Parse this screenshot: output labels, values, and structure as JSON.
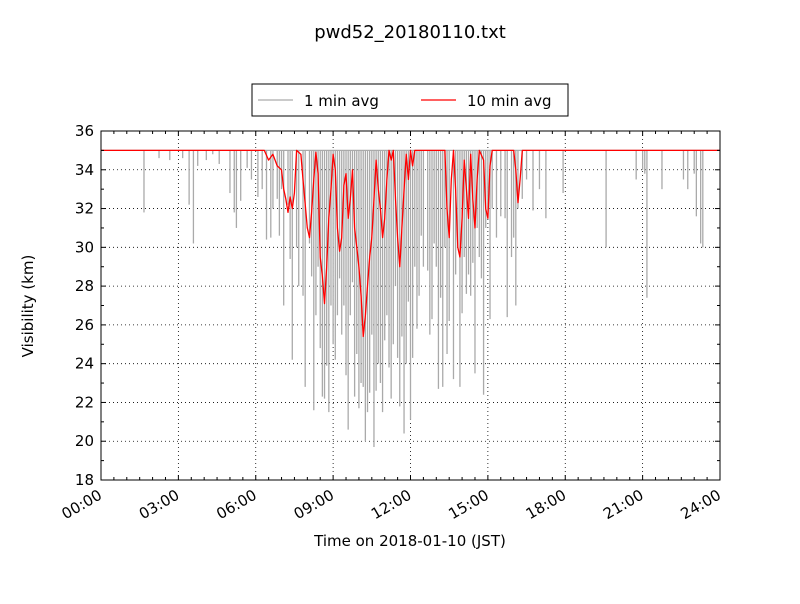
{
  "chart_data": {
    "type": "line",
    "title": "pwd52_20180110.txt",
    "xlabel": "Time on 2018-01-10 (JST)",
    "ylabel": "Visibility (km)",
    "xlim": [
      "00:00",
      "24:00"
    ],
    "ylim": [
      18,
      36
    ],
    "x_ticks": [
      "00:00",
      "03:00",
      "06:00",
      "09:00",
      "12:00",
      "15:00",
      "18:00",
      "21:00",
      "24:00"
    ],
    "y_ticks": [
      "18",
      "20",
      "22",
      "24",
      "26",
      "28",
      "30",
      "32",
      "34",
      "36"
    ],
    "grid": true,
    "legend": {
      "placement": "top-center",
      "entries": [
        "1 min avg",
        "10 min avg"
      ]
    },
    "series": [
      {
        "name": "1 min avg",
        "color": "#aaaaaa",
        "baseline": 35.0,
        "dips": [
          [
            "01:40",
            31.8
          ],
          [
            "02:15",
            34.6
          ],
          [
            "02:40",
            34.5
          ],
          [
            "03:10",
            34.6
          ],
          [
            "03:25",
            32.2
          ],
          [
            "03:35",
            30.2
          ],
          [
            "03:45",
            34.2
          ],
          [
            "04:05",
            34.5
          ],
          [
            "04:20",
            34.8
          ],
          [
            "04:35",
            34.3
          ],
          [
            "05:00",
            32.8
          ],
          [
            "05:10",
            31.8
          ],
          [
            "05:15",
            31.0
          ],
          [
            "05:25",
            32.4
          ],
          [
            "05:40",
            34.1
          ],
          [
            "05:50",
            33.5
          ],
          [
            "06:05",
            32.6
          ],
          [
            "06:15",
            33.0
          ],
          [
            "06:25",
            30.4
          ],
          [
            "06:35",
            30.5
          ],
          [
            "06:40",
            32.0
          ],
          [
            "06:50",
            32.5
          ],
          [
            "06:55",
            30.6
          ],
          [
            "07:00",
            33.0
          ],
          [
            "07:05",
            27.0
          ],
          [
            "07:15",
            32.2
          ],
          [
            "07:20",
            29.4
          ],
          [
            "07:25",
            24.2
          ],
          [
            "07:35",
            30.0
          ],
          [
            "07:40",
            28.0
          ],
          [
            "07:50",
            27.5
          ],
          [
            "07:55",
            22.8
          ],
          [
            "08:05",
            30.2
          ],
          [
            "08:10",
            28.5
          ],
          [
            "08:15",
            21.6
          ],
          [
            "08:20",
            26.5
          ],
          [
            "08:25",
            29.0
          ],
          [
            "08:30",
            24.8
          ],
          [
            "08:35",
            22.3
          ],
          [
            "08:40",
            22.2
          ],
          [
            "08:45",
            23.9
          ],
          [
            "08:50",
            21.5
          ],
          [
            "08:55",
            27.0
          ],
          [
            "09:00",
            25.0
          ],
          [
            "09:05",
            24.2
          ],
          [
            "09:10",
            26.5
          ],
          [
            "09:15",
            28.4
          ],
          [
            "09:20",
            25.5
          ],
          [
            "09:25",
            27.0
          ],
          [
            "09:30",
            23.4
          ],
          [
            "09:35",
            20.6
          ],
          [
            "09:40",
            26.5
          ],
          [
            "09:45",
            28.2
          ],
          [
            "09:50",
            22.3
          ],
          [
            "09:55",
            24.5
          ],
          [
            "10:00",
            21.7
          ],
          [
            "10:05",
            23.0
          ],
          [
            "10:10",
            22.8
          ],
          [
            "10:15",
            20.0
          ],
          [
            "10:20",
            21.5
          ],
          [
            "10:25",
            22.5
          ],
          [
            "10:30",
            25.5
          ],
          [
            "10:35",
            19.7
          ],
          [
            "10:40",
            22.6
          ],
          [
            "10:45",
            24.0
          ],
          [
            "10:50",
            23.0
          ],
          [
            "10:55",
            21.5
          ],
          [
            "11:00",
            25.2
          ],
          [
            "11:05",
            26.5
          ],
          [
            "11:10",
            23.8
          ],
          [
            "11:15",
            22.2
          ],
          [
            "11:20",
            25.0
          ],
          [
            "11:25",
            28.0
          ],
          [
            "11:30",
            24.3
          ],
          [
            "11:35",
            21.8
          ],
          [
            "11:40",
            25.4
          ],
          [
            "11:45",
            20.4
          ],
          [
            "11:50",
            24.0
          ],
          [
            "11:55",
            27.2
          ],
          [
            "12:00",
            21.1
          ],
          [
            "12:05",
            24.3
          ],
          [
            "12:10",
            29.0
          ],
          [
            "12:15",
            25.8
          ],
          [
            "12:20",
            27.5
          ],
          [
            "12:25",
            30.6
          ],
          [
            "12:30",
            29.0
          ],
          [
            "12:40",
            28.8
          ],
          [
            "12:45",
            25.5
          ],
          [
            "12:50",
            26.3
          ],
          [
            "12:55",
            30.2
          ],
          [
            "13:00",
            29.0
          ],
          [
            "13:05",
            22.7
          ],
          [
            "13:10",
            27.4
          ],
          [
            "13:15",
            22.8
          ],
          [
            "13:20",
            30.0
          ],
          [
            "13:25",
            24.5
          ],
          [
            "13:30",
            26.2
          ],
          [
            "13:40",
            23.2
          ],
          [
            "13:45",
            28.6
          ],
          [
            "13:50",
            30.0
          ],
          [
            "13:55",
            22.8
          ],
          [
            "14:00",
            26.6
          ],
          [
            "14:05",
            29.5
          ],
          [
            "14:10",
            27.6
          ],
          [
            "14:15",
            28.6
          ],
          [
            "14:20",
            27.5
          ],
          [
            "14:25",
            29.2
          ],
          [
            "14:30",
            23.5
          ],
          [
            "14:35",
            31.0
          ],
          [
            "14:40",
            29.5
          ],
          [
            "14:45",
            28.4
          ],
          [
            "14:50",
            22.4
          ],
          [
            "14:55",
            31.0
          ],
          [
            "15:00",
            31.8
          ],
          [
            "15:05",
            26.3
          ],
          [
            "15:10",
            32.0
          ],
          [
            "15:20",
            30.5
          ],
          [
            "15:30",
            31.6
          ],
          [
            "15:40",
            31.5
          ],
          [
            "15:45",
            26.4
          ],
          [
            "15:55",
            29.5
          ],
          [
            "16:00",
            30.5
          ],
          [
            "16:05",
            27.0
          ],
          [
            "16:10",
            32.0
          ],
          [
            "16:20",
            32.5
          ],
          [
            "16:30",
            33.5
          ],
          [
            "16:45",
            31.9
          ],
          [
            "17:00",
            33.0
          ],
          [
            "17:15",
            31.5
          ],
          [
            "17:55",
            32.8
          ],
          [
            "19:35",
            30.0
          ],
          [
            "20:45",
            33.5
          ],
          [
            "21:00",
            34.0
          ],
          [
            "21:05",
            33.8
          ],
          [
            "21:10",
            27.4
          ],
          [
            "21:45",
            33.0
          ],
          [
            "22:35",
            33.5
          ],
          [
            "22:45",
            33.0
          ],
          [
            "23:00",
            33.8
          ],
          [
            "23:05",
            31.6
          ],
          [
            "23:15",
            30.2
          ],
          [
            "23:20",
            30.0
          ]
        ]
      },
      {
        "name": "10 min avg",
        "color": "#ff0000",
        "points": [
          [
            "00:00",
            35.0
          ],
          [
            "06:20",
            35.0
          ],
          [
            "06:30",
            34.5
          ],
          [
            "06:40",
            34.8
          ],
          [
            "06:50",
            34.2
          ],
          [
            "07:00",
            34.0
          ],
          [
            "07:05",
            33.0
          ],
          [
            "07:10",
            32.5
          ],
          [
            "07:15",
            31.8
          ],
          [
            "07:20",
            32.6
          ],
          [
            "07:25",
            32.0
          ],
          [
            "07:30",
            32.8
          ],
          [
            "07:35",
            35.0
          ],
          [
            "07:45",
            34.8
          ],
          [
            "07:50",
            33.5
          ],
          [
            "08:00",
            31.0
          ],
          [
            "08:05",
            30.5
          ],
          [
            "08:10",
            31.8
          ],
          [
            "08:15",
            33.5
          ],
          [
            "08:20",
            34.9
          ],
          [
            "08:25",
            33.8
          ],
          [
            "08:30",
            29.5
          ],
          [
            "08:35",
            28.5
          ],
          [
            "08:40",
            27.1
          ],
          [
            "08:45",
            29.0
          ],
          [
            "08:50",
            31.5
          ],
          [
            "08:55",
            33.0
          ],
          [
            "09:00",
            34.8
          ],
          [
            "09:05",
            34.0
          ],
          [
            "09:10",
            31.0
          ],
          [
            "09:15",
            29.8
          ],
          [
            "09:20",
            30.5
          ],
          [
            "09:25",
            33.2
          ],
          [
            "09:30",
            33.8
          ],
          [
            "09:35",
            31.5
          ],
          [
            "09:40",
            32.5
          ],
          [
            "09:45",
            34.0
          ],
          [
            "09:50",
            31.0
          ],
          [
            "09:55",
            30.0
          ],
          [
            "10:00",
            29.0
          ],
          [
            "10:05",
            27.5
          ],
          [
            "10:10",
            25.4
          ],
          [
            "10:15",
            26.5
          ],
          [
            "10:20",
            28.0
          ],
          [
            "10:25",
            29.5
          ],
          [
            "10:30",
            30.5
          ],
          [
            "10:35",
            32.5
          ],
          [
            "10:40",
            34.5
          ],
          [
            "10:45",
            33.0
          ],
          [
            "10:50",
            32.0
          ],
          [
            "10:55",
            30.5
          ],
          [
            "11:00",
            31.5
          ],
          [
            "11:05",
            33.5
          ],
          [
            "11:10",
            35.0
          ],
          [
            "11:15",
            34.5
          ],
          [
            "11:20",
            35.0
          ],
          [
            "11:25",
            32.5
          ],
          [
            "11:30",
            30.5
          ],
          [
            "11:35",
            29.0
          ],
          [
            "11:40",
            31.0
          ],
          [
            "11:45",
            33.0
          ],
          [
            "11:50",
            34.8
          ],
          [
            "11:55",
            33.5
          ],
          [
            "12:00",
            35.0
          ],
          [
            "12:05",
            34.2
          ],
          [
            "12:10",
            35.0
          ],
          [
            "13:20",
            35.0
          ],
          [
            "13:25",
            32.0
          ],
          [
            "13:30",
            30.5
          ],
          [
            "13:35",
            33.5
          ],
          [
            "13:40",
            35.0
          ],
          [
            "13:45",
            33.0
          ],
          [
            "13:50",
            30.0
          ],
          [
            "13:55",
            29.5
          ],
          [
            "14:00",
            31.5
          ],
          [
            "14:05",
            34.5
          ],
          [
            "14:10",
            33.0
          ],
          [
            "14:15",
            31.5
          ],
          [
            "14:20",
            34.8
          ],
          [
            "14:25",
            32.5
          ],
          [
            "14:30",
            31.0
          ],
          [
            "14:35",
            33.5
          ],
          [
            "14:40",
            35.0
          ],
          [
            "14:50",
            34.5
          ],
          [
            "14:55",
            32.0
          ],
          [
            "15:00",
            31.5
          ],
          [
            "15:05",
            34.2
          ],
          [
            "15:10",
            35.0
          ],
          [
            "16:00",
            35.0
          ],
          [
            "16:05",
            34.0
          ],
          [
            "16:10",
            32.3
          ],
          [
            "16:15",
            33.5
          ],
          [
            "16:20",
            35.0
          ],
          [
            "24:00",
            35.0
          ]
        ]
      }
    ]
  }
}
